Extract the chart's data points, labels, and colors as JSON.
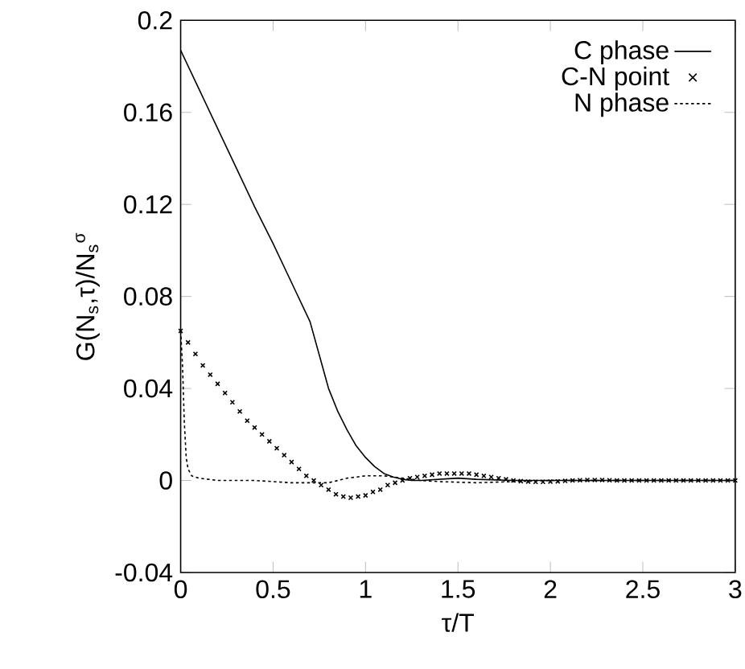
{
  "chart_data": {
    "type": "line",
    "xlabel": "τ/T",
    "ylabel": "G(N$_{s}$,τ)/N$_{s}$$^{σ}$",
    "xlim": [
      0,
      3
    ],
    "ylim": [
      -0.04,
      0.2
    ],
    "xticks": [
      0,
      0.5,
      1,
      1.5,
      2,
      2.5,
      3
    ],
    "yticks": [
      -0.04,
      0,
      0.04,
      0.08,
      0.12,
      0.16,
      0.2
    ],
    "grid": false,
    "legend": "top right",
    "series": [
      {
        "name": "C phase",
        "color": "#000000",
        "line_style": "solid",
        "marker": "none",
        "x": [
          0,
          0.1,
          0.2,
          0.3,
          0.4,
          0.5,
          0.6,
          0.7,
          0.8,
          0.85,
          0.9,
          0.95,
          1.0,
          1.05,
          1.1,
          1.15,
          1.2,
          1.25,
          1.3,
          1.4,
          1.5,
          1.6,
          1.8,
          2.0,
          2.5,
          3.0
        ],
        "values": [
          0.187,
          0.17,
          0.153,
          0.136,
          0.119,
          0.103,
          0.086,
          0.069,
          0.04,
          0.03,
          0.022,
          0.015,
          0.01,
          0.006,
          0.003,
          0.0015,
          0.0005,
          0.0,
          0.0,
          0.0005,
          0.001,
          0.0005,
          0.0,
          0.0,
          0.0,
          0.0
        ]
      },
      {
        "name": "C-N point",
        "type": "scatter",
        "color": "#000000",
        "line_style": "none",
        "marker": "cross",
        "x": [
          0,
          0.04,
          0.08,
          0.12,
          0.16,
          0.2,
          0.24,
          0.28,
          0.32,
          0.36,
          0.4,
          0.44,
          0.48,
          0.52,
          0.56,
          0.6,
          0.64,
          0.68,
          0.72,
          0.76,
          0.8,
          0.84,
          0.88,
          0.92,
          0.96,
          1.0,
          1.04,
          1.08,
          1.12,
          1.16,
          1.2,
          1.24,
          1.28,
          1.32,
          1.36,
          1.4,
          1.44,
          1.48,
          1.52,
          1.56,
          1.6,
          1.64,
          1.68,
          1.72,
          1.76,
          1.8,
          1.84,
          1.88,
          1.92,
          1.96,
          2.0,
          2.04,
          2.08,
          2.12,
          2.16,
          2.2,
          2.24,
          2.28,
          2.32,
          2.36,
          2.4,
          2.44,
          2.48,
          2.52,
          2.56,
          2.6,
          2.64,
          2.68,
          2.72,
          2.76,
          2.8,
          2.84,
          2.88,
          2.92,
          2.96,
          3.0
        ],
        "values": [
          0.065,
          0.06,
          0.055,
          0.05,
          0.046,
          0.042,
          0.038,
          0.034,
          0.03,
          0.026,
          0.023,
          0.02,
          0.017,
          0.014,
          0.011,
          0.008,
          0.005,
          0.002,
          0.0,
          -0.002,
          -0.004,
          -0.006,
          -0.007,
          -0.0075,
          -0.007,
          -0.0065,
          -0.005,
          -0.004,
          -0.002,
          -0.001,
          0.0,
          0.001,
          0.0015,
          0.002,
          0.0025,
          0.003,
          0.003,
          0.003,
          0.003,
          0.003,
          0.0025,
          0.002,
          0.0015,
          0.001,
          0.0005,
          0.0,
          -0.0003,
          -0.0005,
          -0.0006,
          -0.0006,
          -0.0005,
          -0.0004,
          -0.0002,
          0.0,
          0.0001,
          0.0002,
          0.0002,
          0.0002,
          0.0001,
          0.0,
          0.0,
          0.0,
          0.0,
          0.0,
          0.0,
          0.0,
          0.0,
          0.0,
          0.0,
          0.0,
          0.0,
          0.0,
          0.0,
          0.0,
          0.0,
          0.0
        ]
      },
      {
        "name": "N phase",
        "color": "#000000",
        "line_style": "dotted",
        "marker": "none",
        "x": [
          0,
          0.01,
          0.02,
          0.03,
          0.04,
          0.06,
          0.1,
          0.2,
          0.4,
          0.6,
          0.8,
          0.9,
          1.0,
          1.1,
          1.2,
          1.3,
          1.4,
          1.6,
          1.8,
          2.0,
          2.5,
          3.0
        ],
        "values": [
          0.065,
          0.05,
          0.025,
          0.01,
          0.005,
          0.002,
          0.001,
          0.0,
          0.0,
          -0.001,
          -0.001,
          0.001,
          0.002,
          0.002,
          0.001,
          0.0,
          -0.0005,
          -0.001,
          -0.0005,
          0.0,
          0.0,
          0.0
        ]
      }
    ]
  }
}
